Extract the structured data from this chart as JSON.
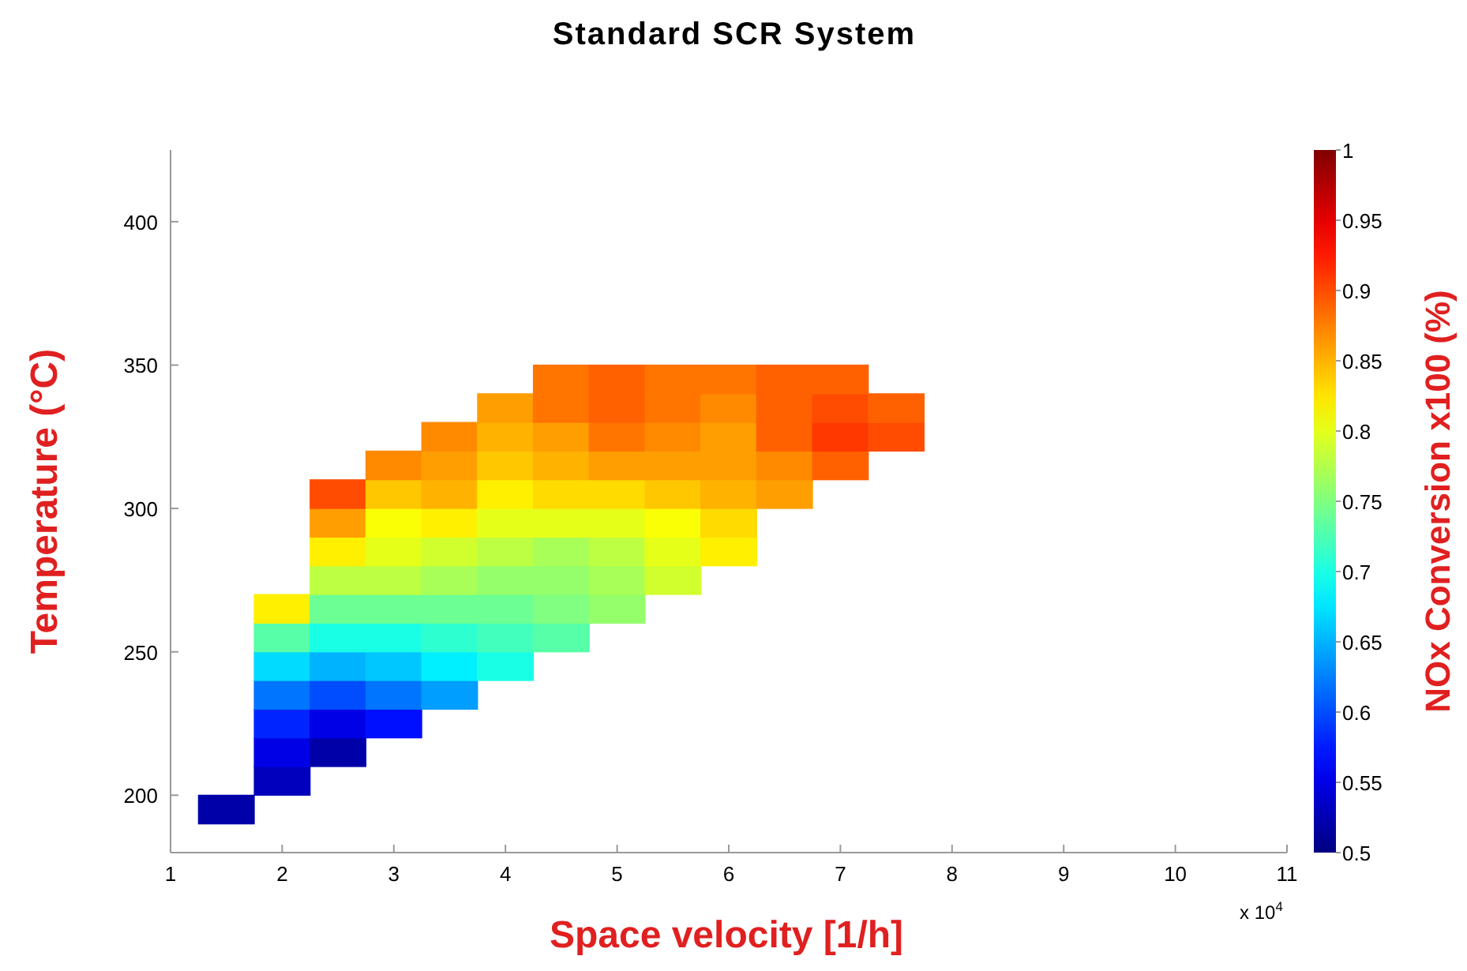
{
  "chart_data": {
    "type": "scatter",
    "title": "Standard SCR System",
    "xlabel": "Space velocity [1/h]",
    "ylabel": "Temperature (°C)",
    "clabel": "NOx Conversion x100 (%)",
    "annotations": [
      "x 10$^{4}$"
    ],
    "marker": "square",
    "xlim": [
      1,
      11
    ],
    "xticks": [
      1,
      2,
      3,
      4,
      5,
      6,
      7,
      8,
      9,
      10,
      11
    ],
    "ylim": [
      180,
      425
    ],
    "yticks": [
      200,
      250,
      300,
      350,
      400
    ],
    "clim": [
      0.5,
      1
    ],
    "cticks": [
      0.5,
      0.55,
      0.6,
      0.65,
      0.7,
      0.75,
      0.8,
      0.85,
      0.9,
      0.95,
      1
    ],
    "x": [
      1.5,
      2,
      2,
      2,
      2,
      2,
      2,
      2,
      2.5,
      2.5,
      2.5,
      2.5,
      2.5,
      2.5,
      2.5,
      2.5,
      2.5,
      2.5,
      3,
      3,
      3,
      3,
      3,
      3,
      3,
      3,
      3,
      3,
      3.5,
      3.5,
      3.5,
      3.5,
      3.5,
      3.5,
      3.5,
      3.5,
      3.5,
      3.5,
      4,
      4,
      4,
      4,
      4,
      4,
      4,
      4,
      4,
      4,
      4.5,
      4.5,
      4.5,
      4.5,
      4.5,
      4.5,
      4.5,
      4.5,
      4.5,
      4.5,
      5,
      5,
      5,
      5,
      5,
      5,
      5,
      5,
      5,
      5.5,
      5.5,
      5.5,
      5.5,
      5.5,
      5.5,
      5.5,
      5.5,
      6,
      6,
      6,
      6,
      6,
      6,
      6,
      6.5,
      6.5,
      6.5,
      6.5,
      6.5,
      7,
      7,
      7,
      7,
      7.5,
      7.5
    ],
    "values": [
      195,
      205,
      215,
      225,
      235,
      245,
      255,
      265,
      215,
      225,
      235,
      245,
      255,
      265,
      275,
      285,
      295,
      305,
      225,
      235,
      245,
      255,
      265,
      275,
      285,
      295,
      305,
      315,
      235,
      245,
      255,
      265,
      275,
      285,
      295,
      305,
      315,
      325,
      245,
      255,
      265,
      275,
      285,
      295,
      305,
      315,
      325,
      335,
      255,
      265,
      275,
      285,
      295,
      305,
      315,
      325,
      335,
      345,
      265,
      275,
      285,
      295,
      305,
      315,
      325,
      335,
      345,
      275,
      285,
      295,
      305,
      315,
      325,
      335,
      345,
      285,
      295,
      305,
      315,
      325,
      335,
      345,
      305,
      315,
      325,
      335,
      345,
      315,
      325,
      335,
      345,
      325,
      335
    ],
    "cvalues": [
      0.52,
      0.53,
      0.55,
      0.58,
      0.62,
      0.67,
      0.73,
      0.82,
      0.52,
      0.55,
      0.6,
      0.65,
      0.7,
      0.74,
      0.78,
      0.82,
      0.86,
      0.9,
      0.57,
      0.62,
      0.66,
      0.7,
      0.74,
      0.78,
      0.8,
      0.81,
      0.84,
      0.87,
      0.64,
      0.68,
      0.71,
      0.74,
      0.77,
      0.79,
      0.82,
      0.85,
      0.86,
      0.87,
      0.7,
      0.72,
      0.74,
      0.76,
      0.78,
      0.8,
      0.82,
      0.84,
      0.85,
      0.86,
      0.73,
      0.75,
      0.76,
      0.77,
      0.8,
      0.83,
      0.85,
      0.86,
      0.88,
      0.88,
      0.76,
      0.77,
      0.78,
      0.8,
      0.83,
      0.86,
      0.88,
      0.89,
      0.89,
      0.79,
      0.8,
      0.81,
      0.84,
      0.86,
      0.87,
      0.88,
      0.88,
      0.82,
      0.83,
      0.85,
      0.86,
      0.86,
      0.87,
      0.88,
      0.86,
      0.87,
      0.89,
      0.89,
      0.89,
      0.89,
      0.91,
      0.9,
      0.89,
      0.9,
      0.89
    ]
  }
}
